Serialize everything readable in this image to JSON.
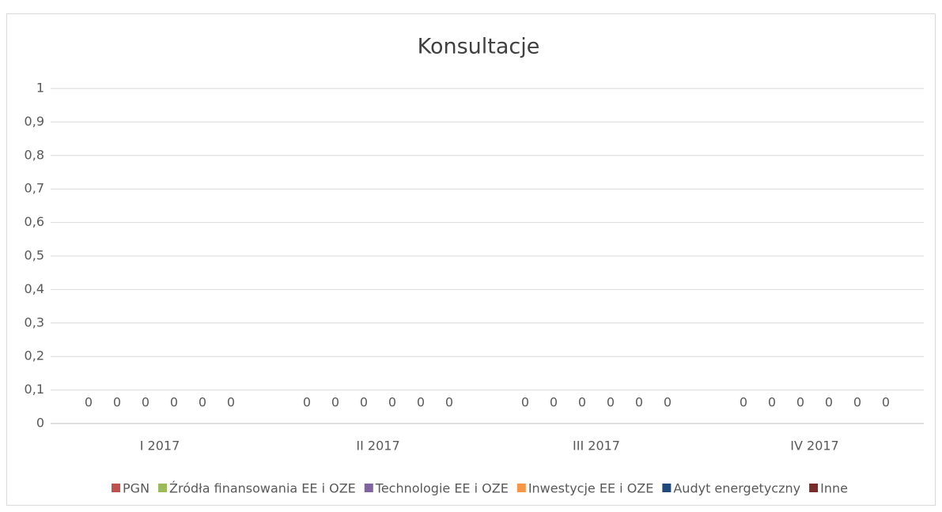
{
  "chart_data": {
    "type": "bar",
    "title": "Konsultacje",
    "categories": [
      "I 2017",
      "II 2017",
      "III 2017",
      "IV 2017"
    ],
    "series": [
      {
        "name": "PGN",
        "color": "#c0504d",
        "values": [
          0,
          0,
          0,
          0
        ]
      },
      {
        "name": "Źródła finansowania EE i OZE",
        "color": "#9bbb59",
        "values": [
          0,
          0,
          0,
          0
        ]
      },
      {
        "name": "Technologie EE i OZE",
        "color": "#8064a2",
        "values": [
          0,
          0,
          0,
          0
        ]
      },
      {
        "name": "Inwestycje EE i OZE",
        "color": "#f79646",
        "values": [
          0,
          0,
          0,
          0
        ]
      },
      {
        "name": "Audyt energetyczny",
        "color": "#1f497d",
        "values": [
          0,
          0,
          0,
          0
        ]
      },
      {
        "name": "Inne",
        "color": "#772c2a",
        "values": [
          0,
          0,
          0,
          0
        ]
      }
    ],
    "ylim": [
      0,
      1
    ],
    "yticks": [
      0,
      {
        "value": 0.1,
        "label": "0,1"
      },
      {
        "value": 0.2,
        "label": "0,2"
      },
      {
        "value": 0.3,
        "label": "0,3"
      },
      {
        "value": 0.4,
        "label": "0,4"
      },
      {
        "value": 0.5,
        "label": "0,5"
      },
      {
        "value": 0.6,
        "label": "0,6"
      },
      {
        "value": 0.7,
        "label": "0,7"
      },
      {
        "value": 0.8,
        "label": "0,8"
      },
      {
        "value": 0.9,
        "label": "0,9"
      },
      1
    ],
    "grid": true,
    "legend": "bottom"
  }
}
